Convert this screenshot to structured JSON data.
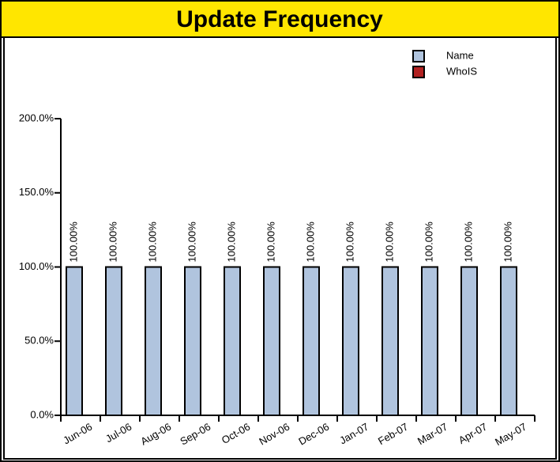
{
  "chart_data": {
    "type": "bar",
    "title": "Update Frequency",
    "categories": [
      "Jun-06",
      "Jul-06",
      "Aug-06",
      "Sep-06",
      "Oct-06",
      "Nov-06",
      "Dec-06",
      "Jan-07",
      "Feb-07",
      "Mar-07",
      "Apr-07",
      "May-07"
    ],
    "series": [
      {
        "name": "Name",
        "color": "#b0c4de",
        "values": [
          100,
          100,
          100,
          100,
          100,
          100,
          100,
          100,
          100,
          100,
          100,
          100
        ],
        "value_labels": [
          "100.00%",
          "100.00%",
          "100.00%",
          "100.00%",
          "100.00%",
          "100.00%",
          "100.00%",
          "100.00%",
          "100.00%",
          "100.00%",
          "100.00%",
          "100.00%"
        ]
      },
      {
        "name": "WhoIS",
        "color": "#b22222",
        "values": [
          0,
          0,
          0,
          0,
          0,
          0,
          0,
          0,
          0,
          0,
          0,
          0
        ]
      }
    ],
    "ylim": [
      0,
      200
    ],
    "yticks": [
      {
        "value": 0,
        "label": "0.0%"
      },
      {
        "value": 50,
        "label": "50.0%"
      },
      {
        "value": 100,
        "label": "100.0%"
      },
      {
        "value": 150,
        "label": "150.0%"
      },
      {
        "value": 200,
        "label": "200.0%"
      }
    ],
    "legend": "top-right"
  }
}
